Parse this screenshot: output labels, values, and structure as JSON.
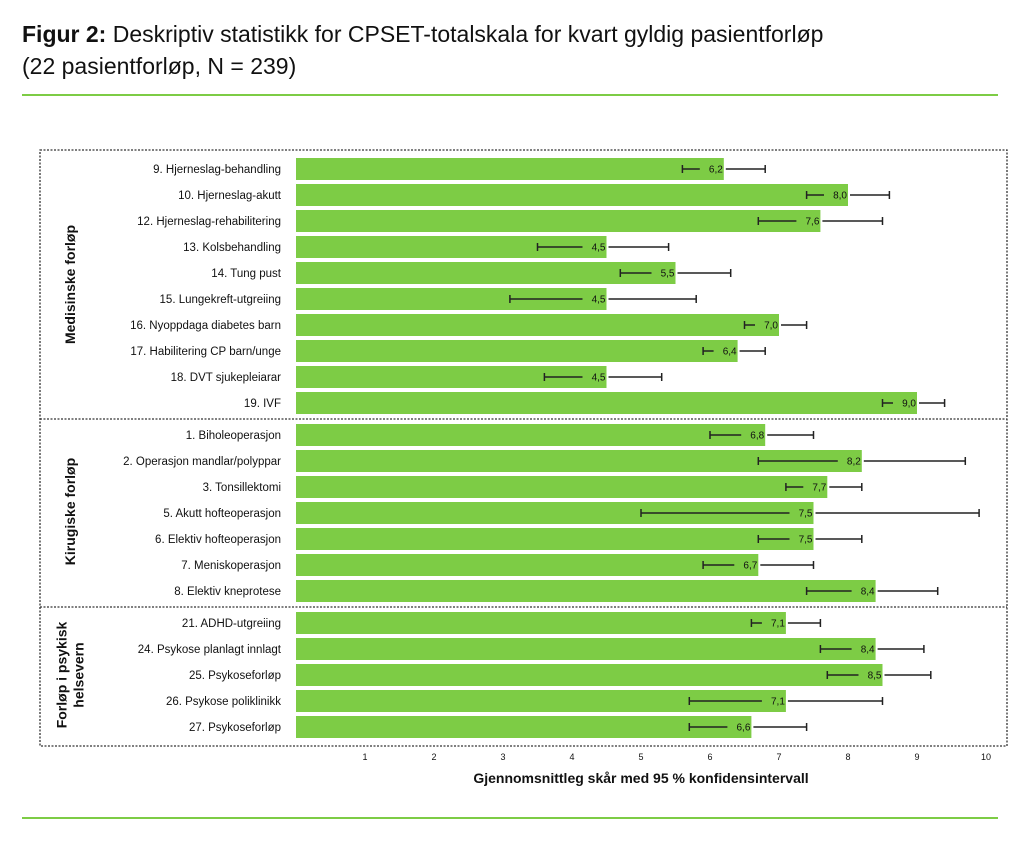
{
  "figure": {
    "label": "Figur 2:",
    "title_line1": " Deskriptiv statistikk for CPSET-totalskala for kvart gyldig pasientforløp",
    "title_line2": "(22 pasientforløp, N = 239)"
  },
  "chart_data": {
    "type": "bar",
    "orientation": "horizontal",
    "xlabel": "Gjennomsnittleg skår med 95 % konfidensintervall",
    "xlim": [
      0,
      10
    ],
    "xticks": [
      "1",
      "2",
      "3",
      "4",
      "5",
      "6",
      "7",
      "8",
      "9",
      "10"
    ],
    "bar_color": "#7dcc45",
    "error_bars": "95% CI",
    "groups": [
      {
        "name": "Medisinske forløp",
        "items": [
          {
            "label": "9. Hjerneslag-behandling",
            "value": 6.2,
            "value_label": "6,2",
            "ci": [
              5.6,
              6.8
            ]
          },
          {
            "label": "10. Hjerneslag-akutt",
            "value": 8.0,
            "value_label": "8,0",
            "ci": [
              7.4,
              8.6
            ]
          },
          {
            "label": "12. Hjerneslag-rehabilitering",
            "value": 7.6,
            "value_label": "7,6",
            "ci": [
              6.7,
              8.5
            ]
          },
          {
            "label": "13. Kolsbehandling",
            "value": 4.5,
            "value_label": "4,5",
            "ci": [
              3.5,
              5.4
            ]
          },
          {
            "label": "14. Tung pust",
            "value": 5.5,
            "value_label": "5,5",
            "ci": [
              4.7,
              6.3
            ]
          },
          {
            "label": "15. Lungekreft-utgreiing",
            "value": 4.5,
            "value_label": "4,5",
            "ci": [
              3.1,
              5.8
            ]
          },
          {
            "label": "16. Nyoppdaga diabetes barn",
            "value": 7.0,
            "value_label": "7,0",
            "ci": [
              6.5,
              7.4
            ]
          },
          {
            "label": "17. Habilitering CP barn/unge",
            "value": 6.4,
            "value_label": "6,4",
            "ci": [
              5.9,
              6.8
            ]
          },
          {
            "label": "18. DVT sjukepleiarar",
            "value": 4.5,
            "value_label": "4,5",
            "ci": [
              3.6,
              5.3
            ]
          },
          {
            "label": "19. IVF",
            "value": 9.0,
            "value_label": "9,0",
            "ci": [
              8.5,
              9.4
            ]
          }
        ]
      },
      {
        "name": "Kirugiske forløp",
        "items": [
          {
            "label": "1. Biholeoperasjon",
            "value": 6.8,
            "value_label": "6,8",
            "ci": [
              6.0,
              7.5
            ]
          },
          {
            "label": "2. Operasjon mandlar/polyppar",
            "value": 8.2,
            "value_label": "8,2",
            "ci": [
              6.7,
              9.7
            ]
          },
          {
            "label": "3. Tonsillektomi",
            "value": 7.7,
            "value_label": "7,7",
            "ci": [
              7.1,
              8.2
            ]
          },
          {
            "label": "5. Akutt hofteoperasjon",
            "value": 7.5,
            "value_label": "7,5",
            "ci": [
              5.0,
              9.9
            ]
          },
          {
            "label": "6. Elektiv hofteoperasjon",
            "value": 7.5,
            "value_label": "7,5",
            "ci": [
              6.7,
              8.2
            ]
          },
          {
            "label": "7. Meniskoperasjon",
            "value": 6.7,
            "value_label": "6,7",
            "ci": [
              5.9,
              7.5
            ]
          },
          {
            "label": "8. Elektiv kneprotese",
            "value": 8.4,
            "value_label": "8,4",
            "ci": [
              7.4,
              9.3
            ]
          }
        ]
      },
      {
        "name": "Forløp i psykisk helsevern",
        "name_lines": [
          "Forløp i psykisk",
          "helsevern"
        ],
        "items": [
          {
            "label": "21. ADHD-utgreiing",
            "value": 7.1,
            "value_label": "7,1",
            "ci": [
              6.6,
              7.6
            ]
          },
          {
            "label": "24. Psykose planlagt innlagt",
            "value": 8.4,
            "value_label": "8,4",
            "ci": [
              7.6,
              9.1
            ]
          },
          {
            "label": "25. Psykoseforløp",
            "value": 8.5,
            "value_label": "8,5",
            "ci": [
              7.7,
              9.2
            ]
          },
          {
            "label": "26. Psykose poliklinikk",
            "value": 7.1,
            "value_label": "7,1",
            "ci": [
              5.7,
              8.5
            ]
          },
          {
            "label": "27. Psykoseforløp",
            "value": 6.6,
            "value_label": "6,6",
            "ci": [
              5.7,
              7.4
            ]
          }
        ]
      }
    ]
  }
}
